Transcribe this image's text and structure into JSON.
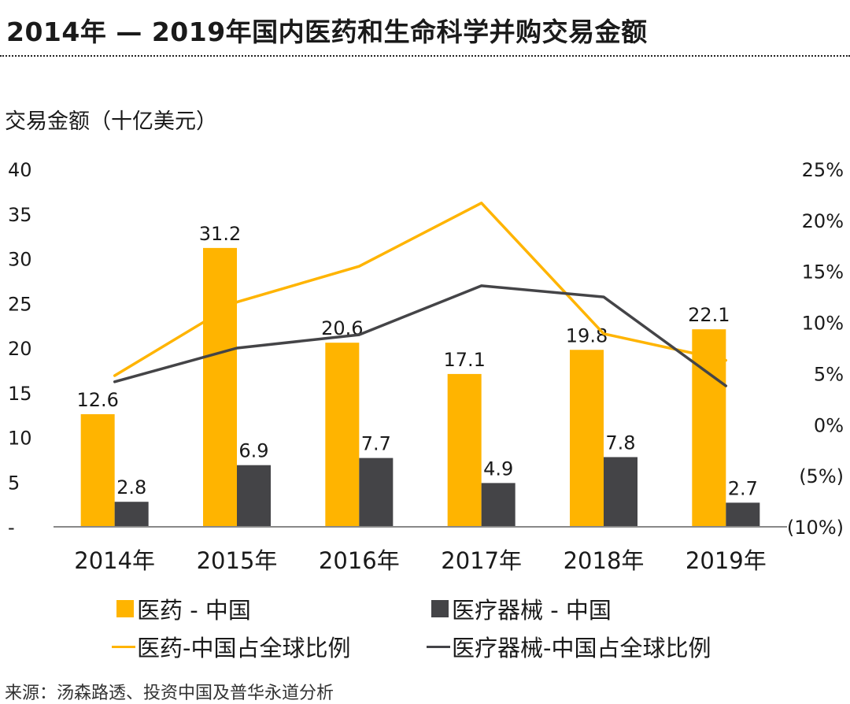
{
  "page": {
    "title": "2014年 — 2019年国内医药和生命科学并购交易金额",
    "source": "来源：汤森路透、投资中国及普华永道分析"
  },
  "chart_data": {
    "type": "bar",
    "ylabel": "交易金额（十亿美元）",
    "categories": [
      "2014年",
      "2015年",
      "2016年",
      "2017年",
      "2018年",
      "2019年"
    ],
    "ylim": [
      0,
      40
    ],
    "y_ticks": [
      "-",
      "5",
      "10",
      "15",
      "20",
      "25",
      "30",
      "35",
      "40"
    ],
    "y2lim": [
      -0.1,
      0.25
    ],
    "y2_ticks": [
      "(10%)",
      "(5%)",
      "0%",
      "5%",
      "10%",
      "15%",
      "20%",
      "25%"
    ],
    "grid": false,
    "legend_position": "bottom",
    "series": [
      {
        "name": "医药 - 中国",
        "kind": "bar",
        "axis": "left",
        "color": "#FFB400",
        "values": [
          12.6,
          31.2,
          20.6,
          17.1,
          19.8,
          22.1
        ],
        "labels": [
          "12.6",
          "31.2",
          "20.6",
          "17.1",
          "19.8",
          "22.1"
        ]
      },
      {
        "name": "医疗器械 - 中国",
        "kind": "bar",
        "axis": "left",
        "color": "#444447",
        "values": [
          2.8,
          6.9,
          7.7,
          4.9,
          7.8,
          2.7
        ],
        "labels": [
          "2.8",
          "6.9",
          "7.7",
          "4.9",
          "7.8",
          "2.7"
        ]
      },
      {
        "name": "医药-中国占全球比例",
        "kind": "line",
        "axis": "right",
        "color": "#FFB400",
        "values": [
          0.048,
          0.12,
          0.155,
          0.217,
          0.089,
          0.063
        ]
      },
      {
        "name": "医疗器械-中国占全球比例",
        "kind": "line",
        "axis": "right",
        "color": "#444447",
        "values": [
          0.042,
          0.075,
          0.088,
          0.136,
          0.125,
          0.038
        ]
      }
    ]
  }
}
